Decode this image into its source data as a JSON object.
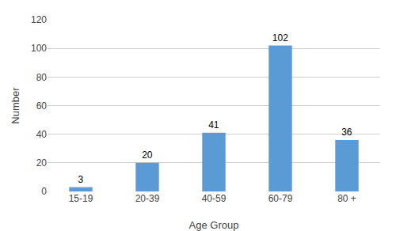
{
  "chart_data": {
    "type": "bar",
    "categories": [
      "15-19",
      "20-39",
      "40-59",
      "60-79",
      "80 +"
    ],
    "values": [
      3,
      20,
      41,
      102,
      36
    ],
    "color": "#5b9bd5",
    "xlabel": "Age Group",
    "ylabel": "Number",
    "ylim": [
      0,
      120
    ],
    "yticks": [
      0,
      20,
      40,
      60,
      80,
      100,
      120
    ],
    "grid": true,
    "data_labels": true
  }
}
